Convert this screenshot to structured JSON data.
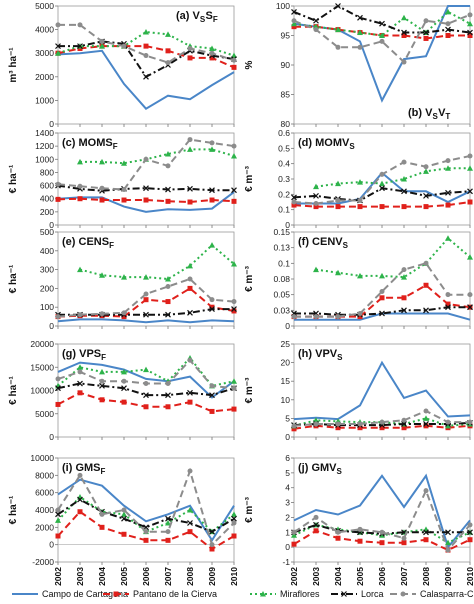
{
  "years": [
    "2002",
    "2003",
    "2004",
    "2005",
    "2006",
    "2007",
    "2008",
    "2009",
    "2010"
  ],
  "legend": [
    {
      "name": "Campo de Cartagena",
      "color": "#4a86c8",
      "dash": "solid",
      "marker": "none"
    },
    {
      "name": "Pantano de la Cierva",
      "color": "#e0201b",
      "dash": "dashed",
      "marker": "square"
    },
    {
      "name": "Miraflores",
      "color": "#2db34a",
      "dash": "dotted",
      "marker": "triangle"
    },
    {
      "name": "Lorca",
      "color": "#111111",
      "dash": "dashdot",
      "marker": "cross"
    },
    {
      "name": "Calasparra-Cieza",
      "color": "#8c8c8c",
      "dash": "dashed",
      "marker": "circle"
    }
  ],
  "chart_data": [
    {
      "type": "line",
      "panel": "(a)",
      "label": "V",
      "label_sub": "S",
      "label_mid": "S",
      "label_sub2": "F",
      "ylabel": "m³ ha⁻¹",
      "ylim": [
        0,
        5000
      ],
      "yticks": [
        "0",
        "1000",
        "2000",
        "3000",
        "4000",
        "5000"
      ],
      "x": [
        "2002",
        "2003",
        "2004",
        "2005",
        "2006",
        "2007",
        "2008",
        "2009",
        "2010"
      ],
      "series": [
        {
          "name": "Campo de Cartagena",
          "values": [
            2950,
            3000,
            3100,
            1700,
            650,
            1200,
            1050,
            1650,
            2200
          ]
        },
        {
          "name": "Pantano de la Cierva",
          "values": [
            3000,
            3200,
            3300,
            3300,
            3300,
            3100,
            2800,
            2800,
            2400
          ]
        },
        {
          "name": "Miraflores",
          "values": [
            3000,
            3300,
            3300,
            3300,
            3900,
            3800,
            3300,
            3200,
            2900
          ]
        },
        {
          "name": "Lorca",
          "values": [
            3300,
            3300,
            3500,
            3400,
            2000,
            2500,
            3100,
            2900,
            2750
          ]
        },
        {
          "name": "Calasparra-Cieza",
          "values": [
            4200,
            4200,
            3500,
            3300,
            2900,
            2600,
            3200,
            3000,
            2700
          ]
        }
      ]
    },
    {
      "type": "line",
      "panel": "(b)",
      "label": "V",
      "label_sub": "S",
      "label_mid": "V",
      "label_sub2": "T",
      "ylabel": "%",
      "ylim": [
        80,
        100
      ],
      "yticks": [
        "80",
        "85",
        "90",
        "95",
        "100"
      ],
      "x": [
        "2002",
        "2003",
        "2004",
        "2005",
        "2006",
        "2007",
        "2008",
        "2009",
        "2010"
      ],
      "series": [
        {
          "name": "Campo de Cartagena",
          "values": [
            97,
            96.5,
            96,
            94,
            84,
            91,
            91.5,
            100,
            100
          ]
        },
        {
          "name": "Pantano de la Cierva",
          "values": [
            96.5,
            96.5,
            96,
            95.5,
            95,
            95,
            94.5,
            95,
            95
          ]
        },
        {
          "name": "Miraflores",
          "values": [
            97,
            96.5,
            96,
            95.5,
            95,
            98,
            95.5,
            99,
            97
          ]
        },
        {
          "name": "Lorca",
          "values": [
            99,
            97.5,
            100,
            98,
            97,
            95.5,
            95.5,
            96,
            95.5
          ]
        },
        {
          "name": "Calasparra-Cieza",
          "values": [
            97.5,
            96,
            93,
            93,
            94,
            90.5,
            97.5,
            97,
            98.5
          ]
        }
      ]
    },
    {
      "type": "line",
      "panel": "(c)",
      "label": "MOMS",
      "label_sub": "F",
      "ylabel": "€ ha⁻¹",
      "ylim": [
        0,
        1400
      ],
      "yticks": [
        "0",
        "200",
        "400",
        "600",
        "800",
        "1000",
        "1200",
        "1400"
      ],
      "x": [
        "2002",
        "2003",
        "2004",
        "2005",
        "2006",
        "2007",
        "2008",
        "2009",
        "2010"
      ],
      "series": [
        {
          "name": "Campo de Cartagena",
          "values": [
            400,
            420,
            420,
            280,
            200,
            240,
            230,
            250,
            500
          ]
        },
        {
          "name": "Pantano de la Cierva",
          "values": [
            390,
            400,
            380,
            380,
            380,
            360,
            350,
            380,
            360
          ]
        },
        {
          "name": "Miraflores",
          "values": [
            null,
            960,
            960,
            940,
            1000,
            1080,
            1150,
            1150,
            1050
          ]
        },
        {
          "name": "Lorca",
          "values": [
            600,
            550,
            520,
            550,
            560,
            540,
            550,
            530,
            530
          ]
        },
        {
          "name": "Calasparra-Cieza",
          "values": [
            620,
            590,
            560,
            540,
            1000,
            900,
            1300,
            1250,
            1200
          ]
        }
      ]
    },
    {
      "type": "line",
      "panel": "(d)",
      "label": "MOMV",
      "label_sub": "S",
      "ylabel": "€ m⁻³",
      "ylim": [
        0,
        0.6
      ],
      "yticks": [
        "0",
        "0.1",
        "0.2",
        "0.3",
        "0.4",
        "0.5",
        "0.6"
      ],
      "x": [
        "2002",
        "2003",
        "2004",
        "2005",
        "2006",
        "2007",
        "2008",
        "2009",
        "2010"
      ],
      "series": [
        {
          "name": "Campo de Cartagena",
          "values": [
            0.14,
            0.14,
            0.14,
            0.17,
            0.34,
            0.22,
            0.22,
            0.15,
            0.22
          ]
        },
        {
          "name": "Pantano de la Cierva",
          "values": [
            0.13,
            0.12,
            0.12,
            0.12,
            0.12,
            0.12,
            0.12,
            0.13,
            0.15
          ]
        },
        {
          "name": "Miraflores",
          "values": [
            null,
            0.25,
            0.27,
            0.28,
            0.27,
            0.3,
            0.35,
            0.37,
            0.37
          ]
        },
        {
          "name": "Lorca",
          "values": [
            0.18,
            0.19,
            0.17,
            0.16,
            0.24,
            0.22,
            0.19,
            0.21,
            0.22
          ]
        },
        {
          "name": "Calasparra-Cieza",
          "values": [
            0.15,
            0.14,
            0.16,
            0.16,
            0.33,
            0.41,
            0.38,
            0.42,
            0.45
          ]
        }
      ]
    },
    {
      "type": "line",
      "panel": "(e)",
      "label": "CENS",
      "label_sub": "F",
      "ylabel": "€ ha⁻¹",
      "ylim": [
        0,
        500
      ],
      "yticks": [
        "0",
        "100",
        "200",
        "300",
        "400",
        "500"
      ],
      "x": [
        "2002",
        "2003",
        "2004",
        "2005",
        "2006",
        "2007",
        "2008",
        "2009",
        "2010"
      ],
      "series": [
        {
          "name": "Campo de Cartagena",
          "values": [
            25,
            35,
            35,
            30,
            20,
            30,
            20,
            30,
            25
          ]
        },
        {
          "name": "Pantano de la Cierva",
          "values": [
            50,
            55,
            55,
            50,
            140,
            130,
            200,
            100,
            80
          ]
        },
        {
          "name": "Miraflores",
          "values": [
            null,
            300,
            270,
            260,
            260,
            250,
            320,
            430,
            330
          ]
        },
        {
          "name": "Lorca",
          "values": [
            60,
            60,
            60,
            60,
            60,
            60,
            70,
            90,
            90
          ]
        },
        {
          "name": "Calasparra-Cieza",
          "values": [
            50,
            60,
            65,
            70,
            170,
            210,
            250,
            140,
            130
          ]
        }
      ]
    },
    {
      "type": "line",
      "panel": "(f)",
      "label": "CENV",
      "label_sub": "S",
      "ylabel": "€ m⁻³",
      "ylim": [
        0,
        0.15
      ],
      "yticks": [
        "0",
        "0.03",
        "0.05",
        "0.08",
        "0.1",
        "0.13",
        "0.15"
      ],
      "x": [
        "2002",
        "2003",
        "2004",
        "2005",
        "2006",
        "2007",
        "2008",
        "2009",
        "2010"
      ],
      "series": [
        {
          "name": "Campo de Cartagena",
          "values": [
            0.01,
            0.01,
            0.01,
            0.01,
            0.02,
            0.02,
            0.02,
            0.02,
            0.01
          ]
        },
        {
          "name": "Pantano de la Cierva",
          "values": [
            0.015,
            0.015,
            0.015,
            0.015,
            0.045,
            0.045,
            0.065,
            0.035,
            0.03
          ]
        },
        {
          "name": "Miraflores",
          "values": [
            null,
            0.09,
            0.085,
            0.08,
            0.08,
            0.078,
            0.1,
            0.14,
            0.11
          ]
        },
        {
          "name": "Lorca",
          "values": [
            0.02,
            0.02,
            0.018,
            0.018,
            0.02,
            0.025,
            0.025,
            0.03,
            0.03
          ]
        },
        {
          "name": "Calasparra-Cieza",
          "values": [
            0.015,
            0.015,
            0.015,
            0.02,
            0.055,
            0.09,
            0.1,
            0.05,
            0.05
          ]
        }
      ]
    },
    {
      "type": "line",
      "panel": "(g)",
      "label": "VPS",
      "label_sub": "F",
      "ylabel": "€ ha⁻¹",
      "ylim": [
        0,
        20000
      ],
      "yticks": [
        "0",
        "5000",
        "10000",
        "15000",
        "20000"
      ],
      "x": [
        "2002",
        "2003",
        "2004",
        "2005",
        "2006",
        "2007",
        "2008",
        "2009",
        "2010"
      ],
      "series": [
        {
          "name": "Campo de Cartagena",
          "values": [
            14000,
            16000,
            15500,
            14500,
            12500,
            12000,
            13000,
            8500,
            12000
          ]
        },
        {
          "name": "Pantano de la Cierva",
          "values": [
            7000,
            9500,
            8000,
            7500,
            6500,
            6500,
            7500,
            5500,
            6000
          ]
        },
        {
          "name": "Miraflores",
          "values": [
            11000,
            15000,
            14000,
            14000,
            14500,
            12000,
            17000,
            11000,
            12000
          ]
        },
        {
          "name": "Lorca",
          "values": [
            10500,
            11500,
            11000,
            10500,
            9000,
            9000,
            9500,
            9000,
            10500
          ]
        },
        {
          "name": "Calasparra-Cieza",
          "values": [
            12500,
            14000,
            12000,
            12000,
            11500,
            11500,
            16500,
            11000,
            10500
          ]
        }
      ]
    },
    {
      "type": "line",
      "panel": "(h)",
      "label": "VPV",
      "label_sub": "S",
      "ylabel": "€ m⁻³",
      "ylim": [
        0,
        25
      ],
      "yticks": [
        "0",
        "5",
        "10",
        "15",
        "20",
        "25"
      ],
      "x": [
        "2002",
        "2003",
        "2004",
        "2005",
        "2006",
        "2007",
        "2008",
        "2009",
        "2010"
      ],
      "series": [
        {
          "name": "Campo de Cartagena",
          "values": [
            4.8,
            5.2,
            4.8,
            8.5,
            20,
            10.5,
            12.5,
            5.5,
            5.8
          ]
        },
        {
          "name": "Pantano de la Cierva",
          "values": [
            2.2,
            3,
            2.5,
            2.5,
            2.5,
            2.5,
            3,
            2.5,
            3
          ]
        },
        {
          "name": "Miraflores",
          "values": [
            3,
            4.5,
            4.2,
            4,
            4,
            3.5,
            5,
            3,
            3.5
          ]
        },
        {
          "name": "Lorca",
          "values": [
            3.2,
            3.5,
            3.2,
            3.2,
            3.2,
            3.5,
            3.5,
            3.5,
            3.8
          ]
        },
        {
          "name": "Calasparra-Cieza",
          "values": [
            3,
            3.5,
            3.5,
            3.5,
            4,
            4.5,
            7,
            4,
            4
          ]
        }
      ]
    },
    {
      "type": "line",
      "panel": "(i)",
      "label": "GMS",
      "label_sub": "F",
      "ylabel": "€ ha⁻¹",
      "ylim": [
        -2000,
        10000
      ],
      "yticks": [
        "-2000",
        "0",
        "2000",
        "4000",
        "6000",
        "8000",
        "10000"
      ],
      "x": [
        "2002",
        "2003",
        "2004",
        "2005",
        "2006",
        "2007",
        "2008",
        "2009",
        "2010"
      ],
      "series": [
        {
          "name": "Campo de Cartagena",
          "values": [
            5800,
            7500,
            6800,
            4500,
            2700,
            3500,
            4500,
            500,
            4500
          ]
        },
        {
          "name": "Pantano de la Cierva",
          "values": [
            1000,
            3800,
            2000,
            1200,
            500,
            500,
            1500,
            -500,
            1000
          ]
        },
        {
          "name": "Miraflores",
          "values": [
            2800,
            5500,
            3800,
            3500,
            1500,
            2500,
            4000,
            1500,
            3500
          ]
        },
        {
          "name": "Lorca",
          "values": [
            3500,
            5200,
            3800,
            3000,
            2000,
            3000,
            2500,
            1500,
            3000
          ]
        },
        {
          "name": "Calasparra-Cieza",
          "values": [
            4000,
            8000,
            3500,
            4000,
            1500,
            1500,
            8500,
            0,
            2500
          ]
        }
      ]
    },
    {
      "type": "line",
      "panel": "(j)",
      "label": "GMV",
      "label_sub": "S",
      "ylabel": "€ m⁻³",
      "ylim": [
        -1,
        6
      ],
      "yticks": [
        "-1",
        "0",
        "1",
        "2",
        "3",
        "4",
        "5",
        "6"
      ],
      "x": [
        "2002",
        "2003",
        "2004",
        "2005",
        "2006",
        "2007",
        "2008",
        "2009",
        "2010"
      ],
      "series": [
        {
          "name": "Campo de Cartagena",
          "values": [
            1.8,
            2.5,
            2.2,
            2.8,
            4.8,
            2.7,
            4.8,
            0,
            1.8
          ]
        },
        {
          "name": "Pantano de la Cierva",
          "values": [
            0.2,
            1.1,
            0.6,
            0.4,
            0.3,
            0.3,
            0.5,
            -0.2,
            0.5
          ]
        },
        {
          "name": "Miraflores",
          "values": [
            0.8,
            1.5,
            1.2,
            1.0,
            0.8,
            1.0,
            1.2,
            0.3,
            1.0
          ]
        },
        {
          "name": "Lorca",
          "values": [
            1.0,
            1.5,
            1.1,
            1.0,
            0.9,
            1.0,
            1.0,
            1.0,
            1.0
          ]
        },
        {
          "name": "Calasparra-Cieza",
          "values": [
            1.0,
            2.0,
            1.0,
            1.2,
            1.0,
            0.6,
            3.8,
            -0.2,
            1.5
          ]
        }
      ]
    }
  ]
}
